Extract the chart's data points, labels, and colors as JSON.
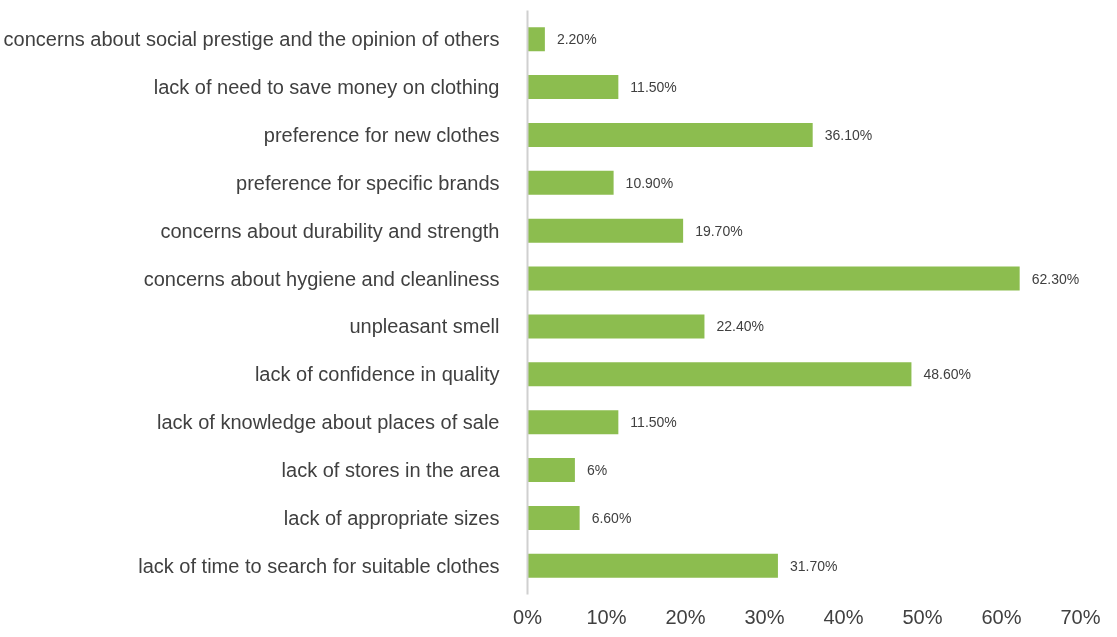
{
  "chart_data": {
    "type": "bar",
    "orientation": "horizontal",
    "categories": [
      "concerns about social prestige and the opinion of others",
      "lack of need to save money on clothing",
      "preference for new clothes",
      "preference for specific brands",
      "concerns about durability and strength",
      "concerns about hygiene and cleanliness",
      "unpleasant smell",
      "lack of confidence in quality",
      "lack of knowledge about places of sale",
      "lack of stores in the area",
      "lack of appropriate sizes",
      "lack of time to search for suitable clothes"
    ],
    "values": [
      2.2,
      11.5,
      36.1,
      10.9,
      19.7,
      62.3,
      22.4,
      48.6,
      11.5,
      6,
      6.6,
      31.7
    ],
    "value_labels": [
      "2.20%",
      "11.50%",
      "36.10%",
      "10.90%",
      "19.70%",
      "62.30%",
      "22.40%",
      "48.60%",
      "11.50%",
      "6%",
      "6.60%",
      "31.70%"
    ],
    "color": "#8cbd4f",
    "xlim": [
      0,
      70
    ],
    "xticks": [
      {
        "value": 0,
        "label": "0%"
      },
      {
        "value": 10,
        "label": "10%"
      },
      {
        "value": 20,
        "label": "20%"
      },
      {
        "value": 30,
        "label": "30%"
      },
      {
        "value": 40,
        "label": "40%"
      },
      {
        "value": 50,
        "label": "50%"
      },
      {
        "value": 60,
        "label": "60%"
      },
      {
        "value": 70,
        "label": "70%"
      }
    ],
    "grid": false
  }
}
